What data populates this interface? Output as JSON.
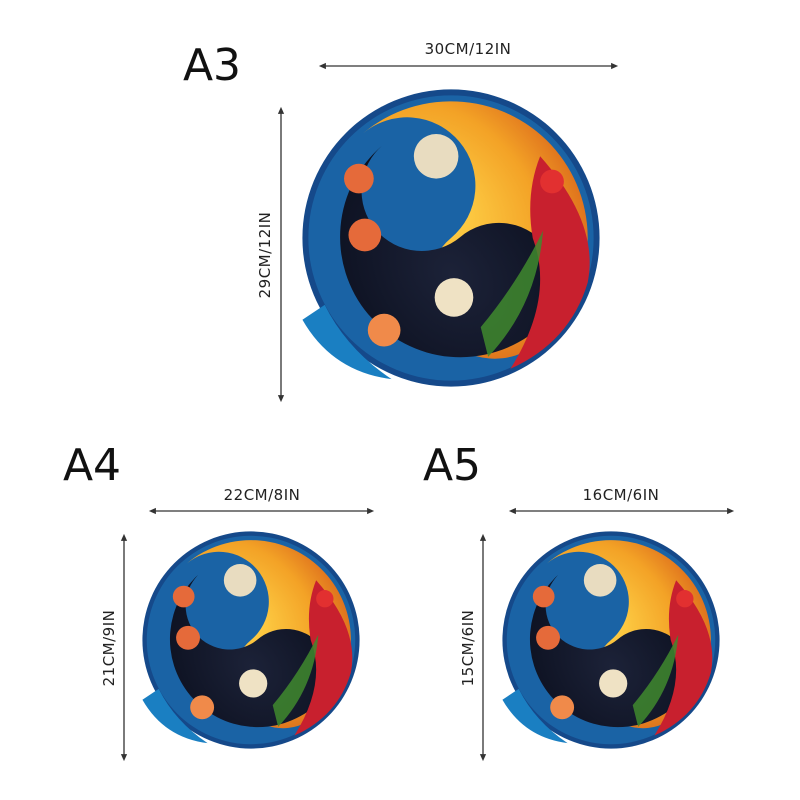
{
  "sizes": [
    {
      "label": "A3",
      "width": "30CM/12IN",
      "height": "29CM/12IN"
    },
    {
      "label": "A4",
      "width": "22CM/8IN",
      "height": "21CM/9IN"
    },
    {
      "label": "A5",
      "width": "16CM/6IN",
      "height": "15CM/6IN"
    }
  ]
}
